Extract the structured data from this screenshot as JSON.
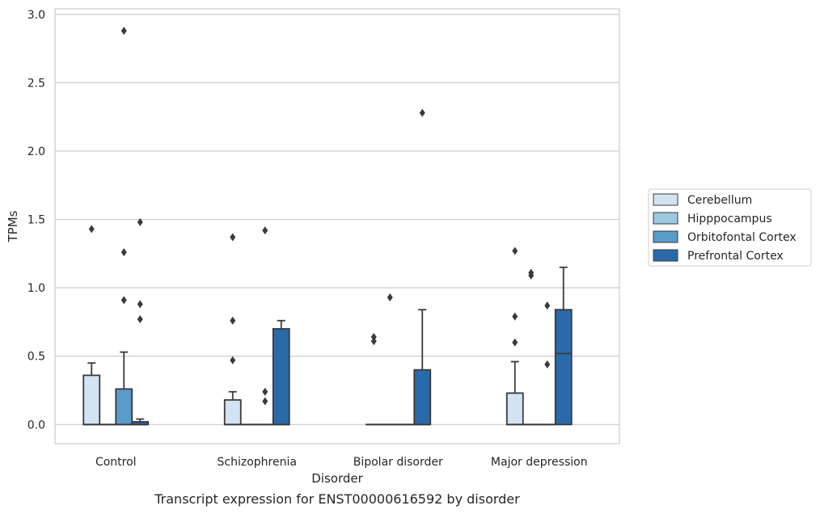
{
  "chart_data": {
    "type": "box",
    "title": "",
    "caption": "Transcript expression for ENST00000616592 by disorder",
    "xlabel": "Disorder",
    "ylabel": "TPMs",
    "ylim": [
      -0.14,
      3.04
    ],
    "yticks": [
      0.0,
      0.5,
      1.0,
      1.5,
      2.0,
      2.5,
      3.0
    ],
    "ytick_labels": [
      "0.0",
      "0.5",
      "1.0",
      "1.5",
      "2.0",
      "2.5",
      "3.0"
    ],
    "grid": "horizontal",
    "legend_position": "right",
    "categories": [
      "Control",
      "Schizophrenia",
      "Bipolar disorder",
      "Major depression"
    ],
    "series": [
      {
        "name": "Cerebellum",
        "color": "#d3e3f2",
        "boxes": [
          {
            "q1": 0.0,
            "median": 0.0,
            "q3": 0.36,
            "whisker_low": 0.0,
            "whisker_high": 0.45,
            "outliers": [
              1.43
            ]
          },
          {
            "q1": 0.0,
            "median": 0.0,
            "q3": 0.18,
            "whisker_low": 0.0,
            "whisker_high": 0.24,
            "outliers": [
              0.47,
              0.76,
              1.37
            ]
          },
          {
            "q1": 0.0,
            "median": 0.0,
            "q3": 0.0,
            "whisker_low": 0.0,
            "whisker_high": 0.0,
            "outliers": [
              0.61,
              0.64
            ]
          },
          {
            "q1": 0.0,
            "median": 0.0,
            "q3": 0.23,
            "whisker_low": 0.0,
            "whisker_high": 0.46,
            "outliers": [
              0.6,
              0.79,
              1.27
            ]
          }
        ]
      },
      {
        "name": "Hipppocampus",
        "color": "#9ac8e0",
        "boxes": [
          {
            "q1": 0.0,
            "median": 0.0,
            "q3": 0.0,
            "whisker_low": 0.0,
            "whisker_high": 0.0,
            "outliers": []
          },
          {
            "q1": 0.0,
            "median": 0.0,
            "q3": 0.0,
            "whisker_low": 0.0,
            "whisker_high": 0.0,
            "outliers": []
          },
          {
            "q1": 0.0,
            "median": 0.0,
            "q3": 0.0,
            "whisker_low": 0.0,
            "whisker_high": 0.0,
            "outliers": [
              0.93
            ]
          },
          {
            "q1": 0.0,
            "median": 0.0,
            "q3": 0.0,
            "whisker_low": 0.0,
            "whisker_high": 0.0,
            "outliers": [
              1.09,
              1.11
            ]
          }
        ]
      },
      {
        "name": "Orbitofontal Cortex",
        "color": "#5a9bc8",
        "boxes": [
          {
            "q1": 0.0,
            "median": 0.0,
            "q3": 0.26,
            "whisker_low": 0.0,
            "whisker_high": 0.53,
            "outliers": [
              0.91,
              1.26,
              2.88
            ]
          },
          {
            "q1": 0.0,
            "median": 0.0,
            "q3": 0.0,
            "whisker_low": 0.0,
            "whisker_high": 0.0,
            "outliers": [
              0.17,
              0.24,
              1.42
            ]
          },
          {
            "q1": 0.0,
            "median": 0.0,
            "q3": 0.0,
            "whisker_low": 0.0,
            "whisker_high": 0.0,
            "outliers": []
          },
          {
            "q1": 0.0,
            "median": 0.0,
            "q3": 0.0,
            "whisker_low": 0.0,
            "whisker_high": 0.0,
            "outliers": [
              0.44,
              0.87
            ]
          }
        ]
      },
      {
        "name": "Prefrontal Cortex",
        "color": "#2a6aaa",
        "boxes": [
          {
            "q1": 0.0,
            "median": 0.0,
            "q3": 0.02,
            "whisker_low": 0.0,
            "whisker_high": 0.04,
            "outliers": [
              0.77,
              0.88,
              1.48
            ]
          },
          {
            "q1": 0.0,
            "median": 0.0,
            "q3": 0.7,
            "whisker_low": 0.0,
            "whisker_high": 0.76,
            "outliers": []
          },
          {
            "q1": 0.0,
            "median": 0.0,
            "q3": 0.4,
            "whisker_low": 0.0,
            "whisker_high": 0.84,
            "outliers": [
              2.28
            ]
          },
          {
            "q1": 0.0,
            "median": 0.52,
            "q3": 0.84,
            "whisker_low": 0.0,
            "whisker_high": 1.15,
            "outliers": []
          }
        ]
      }
    ]
  }
}
